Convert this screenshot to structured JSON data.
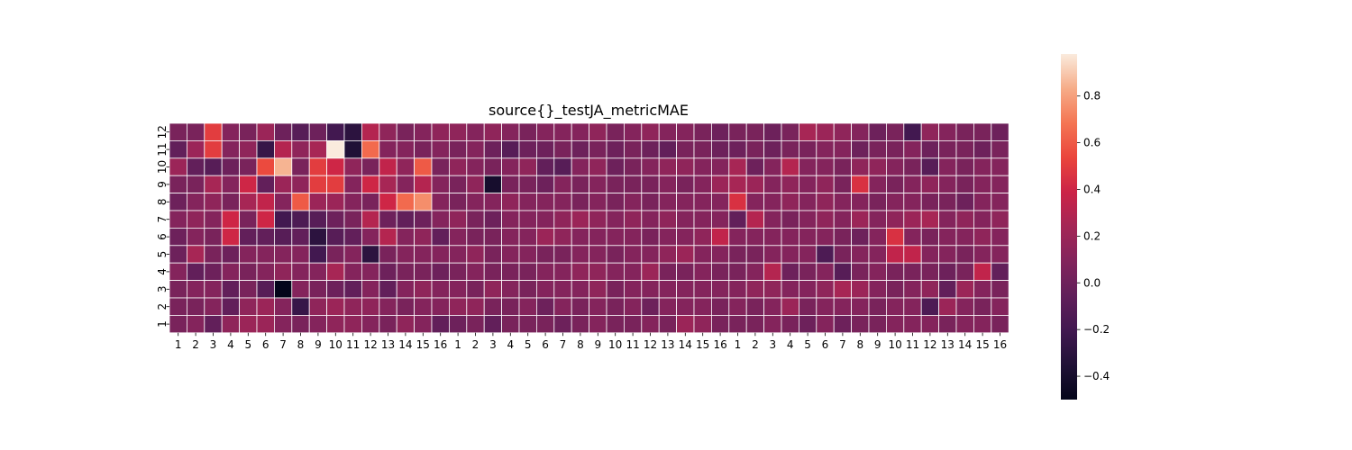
{
  "chart_data": {
    "type": "heatmap",
    "title": "source{}_testJA_metricMAE",
    "xlabel": "",
    "ylabel": "",
    "x_tick_labels": [
      "1",
      "2",
      "3",
      "4",
      "5",
      "6",
      "7",
      "8",
      "9",
      "10",
      "11",
      "12",
      "13",
      "14",
      "15",
      "16",
      "1",
      "2",
      "3",
      "4",
      "5",
      "6",
      "7",
      "8",
      "9",
      "10",
      "11",
      "12",
      "13",
      "14",
      "15",
      "16",
      "1",
      "2",
      "3",
      "4",
      "5",
      "6",
      "7",
      "8",
      "9",
      "10",
      "11",
      "12",
      "13",
      "14",
      "15",
      "16"
    ],
    "y_tick_labels": [
      "12",
      "11",
      "10",
      "9",
      "8",
      "7",
      "6",
      "5",
      "4",
      "3",
      "2",
      "1"
    ],
    "colorbar": {
      "vmin": -0.5,
      "vmax": 0.98,
      "ticks": [
        -0.4,
        -0.2,
        0.0,
        0.2,
        0.4,
        0.6,
        0.8
      ],
      "tick_labels": [
        "−0.4",
        "−0.2",
        "0.0",
        "0.2",
        "0.4",
        "0.6",
        "0.8"
      ],
      "colormap": "rocket"
    },
    "grid": true,
    "values": [
      [
        0.05,
        0.05,
        0.5,
        0.1,
        0.05,
        0.2,
        0.0,
        -0.1,
        0.0,
        -0.2,
        -0.3,
        0.3,
        0.15,
        0.05,
        0.1,
        0.15,
        0.15,
        0.1,
        0.15,
        0.1,
        0.05,
        0.1,
        0.1,
        0.1,
        0.15,
        0.05,
        0.1,
        0.15,
        0.1,
        0.1,
        0.05,
        0.0,
        0.05,
        0.05,
        0.0,
        0.05,
        0.25,
        0.2,
        0.15,
        0.1,
        0.0,
        0.05,
        -0.2,
        0.15,
        0.1,
        0.05,
        0.05,
        0.0
      ],
      [
        -0.05,
        0.2,
        0.5,
        0.1,
        0.15,
        -0.25,
        0.3,
        0.15,
        0.25,
        0.98,
        -0.35,
        0.65,
        0.1,
        0.1,
        0.05,
        0.1,
        0.05,
        0.1,
        0.0,
        -0.1,
        0.0,
        0.0,
        0.05,
        0.0,
        0.05,
        0.0,
        0.05,
        0.0,
        -0.05,
        0.05,
        0.05,
        0.0,
        0.0,
        0.05,
        0.0,
        0.05,
        0.05,
        0.1,
        0.1,
        0.0,
        0.05,
        0.05,
        0.1,
        0.0,
        0.05,
        0.05,
        0.0,
        0.05
      ],
      [
        0.2,
        -0.05,
        -0.1,
        0.0,
        0.05,
        0.55,
        0.85,
        0.05,
        0.5,
        0.4,
        0.15,
        0.05,
        0.35,
        0.15,
        0.6,
        0.05,
        0.15,
        0.1,
        0.05,
        0.1,
        0.15,
        -0.05,
        -0.1,
        0.1,
        0.15,
        0.0,
        0.05,
        0.1,
        0.15,
        0.15,
        0.1,
        0.1,
        0.25,
        0.0,
        0.1,
        0.3,
        0.1,
        0.1,
        0.05,
        0.15,
        0.15,
        0.1,
        0.05,
        -0.1,
        0.1,
        0.05,
        0.1,
        0.1
      ],
      [
        0.05,
        0.05,
        0.25,
        0.1,
        0.4,
        -0.05,
        0.2,
        0.15,
        0.5,
        0.5,
        0.1,
        0.4,
        0.25,
        0.1,
        0.3,
        0.1,
        0.05,
        0.15,
        -0.4,
        0.05,
        0.05,
        0.0,
        0.1,
        0.05,
        0.1,
        0.05,
        0.05,
        0.05,
        0.1,
        0.05,
        0.1,
        0.2,
        0.25,
        0.2,
        0.1,
        0.15,
        0.1,
        0.15,
        0.05,
        0.45,
        0.1,
        0.05,
        0.1,
        0.15,
        0.1,
        0.05,
        0.1,
        0.1
      ],
      [
        0.0,
        0.1,
        0.15,
        0.05,
        0.25,
        0.35,
        0.1,
        0.6,
        0.2,
        0.2,
        0.1,
        0.05,
        0.4,
        0.65,
        0.75,
        0.1,
        0.05,
        0.1,
        0.1,
        0.15,
        0.1,
        0.1,
        0.1,
        0.05,
        0.1,
        0.05,
        0.1,
        0.05,
        0.1,
        0.1,
        0.1,
        0.1,
        0.45,
        0.1,
        0.1,
        0.15,
        0.1,
        0.15,
        0.1,
        0.1,
        0.05,
        0.1,
        0.1,
        0.05,
        0.05,
        0.0,
        0.1,
        0.1
      ],
      [
        0.1,
        0.15,
        0.1,
        0.4,
        0.05,
        0.4,
        -0.2,
        -0.15,
        -0.1,
        0.0,
        0.05,
        0.3,
        0.0,
        -0.05,
        0.0,
        0.1,
        0.15,
        0.05,
        0.0,
        0.1,
        0.1,
        0.1,
        0.15,
        0.2,
        0.15,
        0.1,
        0.15,
        0.1,
        0.15,
        0.1,
        0.1,
        0.1,
        -0.05,
        0.3,
        0.1,
        0.05,
        0.1,
        0.15,
        0.1,
        0.2,
        0.1,
        0.15,
        0.2,
        0.25,
        0.1,
        0.15,
        0.1,
        0.15
      ],
      [
        0.0,
        0.1,
        0.05,
        0.4,
        -0.05,
        -0.05,
        -0.1,
        -0.05,
        -0.3,
        -0.1,
        -0.05,
        0.1,
        0.3,
        0.1,
        0.15,
        -0.05,
        0.1,
        0.05,
        0.05,
        0.1,
        0.1,
        0.2,
        0.15,
        0.1,
        0.1,
        0.1,
        0.1,
        0.05,
        0.1,
        0.1,
        0.15,
        0.35,
        0.1,
        0.1,
        0.1,
        0.1,
        0.1,
        0.1,
        0.05,
        0.0,
        0.1,
        0.45,
        0.1,
        0.05,
        0.1,
        0.1,
        0.15,
        0.1
      ],
      [
        0.0,
        0.25,
        0.05,
        0.0,
        0.1,
        0.1,
        0.1,
        0.1,
        -0.2,
        0.05,
        0.1,
        -0.3,
        0.05,
        0.1,
        0.1,
        0.1,
        0.1,
        0.15,
        0.05,
        0.1,
        0.1,
        0.05,
        0.05,
        0.1,
        0.1,
        0.05,
        0.1,
        0.1,
        0.15,
        0.2,
        0.1,
        0.1,
        0.05,
        0.05,
        0.1,
        0.1,
        0.1,
        -0.15,
        0.05,
        0.1,
        0.1,
        0.35,
        0.35,
        0.1,
        0.1,
        0.05,
        0.1,
        0.1
      ],
      [
        0.1,
        -0.05,
        0.0,
        0.1,
        0.05,
        0.1,
        0.15,
        0.1,
        0.1,
        0.25,
        0.1,
        0.1,
        0.0,
        0.05,
        0.05,
        0.0,
        0.05,
        0.1,
        0.05,
        0.05,
        0.05,
        0.1,
        0.1,
        0.15,
        0.15,
        0.1,
        0.1,
        0.2,
        0.05,
        0.05,
        0.1,
        0.05,
        0.05,
        0.1,
        0.3,
        0.0,
        0.05,
        0.1,
        -0.1,
        0.05,
        0.1,
        0.05,
        0.05,
        0.05,
        0.0,
        0.05,
        0.35,
        -0.05
      ],
      [
        0.05,
        0.1,
        0.1,
        -0.05,
        0.05,
        -0.1,
        -0.5,
        0.1,
        0.05,
        0.0,
        -0.05,
        0.1,
        -0.05,
        0.1,
        0.15,
        0.1,
        0.1,
        0.05,
        0.15,
        0.1,
        0.05,
        0.1,
        0.1,
        0.1,
        0.15,
        0.05,
        0.1,
        0.1,
        0.1,
        0.1,
        0.1,
        0.1,
        0.1,
        0.15,
        0.15,
        0.1,
        0.1,
        0.15,
        0.25,
        0.2,
        0.1,
        0.05,
        0.1,
        0.15,
        -0.05,
        0.2,
        0.1,
        0.05
      ],
      [
        0.05,
        0.05,
        0.1,
        -0.05,
        0.15,
        0.2,
        0.1,
        -0.25,
        0.15,
        0.2,
        0.15,
        0.15,
        0.1,
        0.05,
        0.1,
        0.1,
        0.15,
        0.15,
        0.05,
        0.05,
        0.1,
        0.0,
        0.1,
        0.05,
        0.1,
        0.05,
        0.1,
        0.0,
        0.1,
        0.1,
        0.1,
        0.05,
        0.1,
        0.05,
        0.1,
        0.2,
        0.05,
        0.1,
        0.1,
        0.1,
        0.05,
        0.1,
        0.1,
        -0.15,
        0.2,
        0.1,
        0.05,
        0.1
      ],
      [
        0.05,
        0.1,
        -0.05,
        0.15,
        0.2,
        0.2,
        0.1,
        0.05,
        0.1,
        0.15,
        0.15,
        0.1,
        0.05,
        0.15,
        0.1,
        -0.05,
        0.0,
        0.05,
        -0.05,
        0.05,
        0.05,
        0.05,
        0.0,
        0.05,
        0.1,
        0.05,
        0.05,
        0.1,
        0.05,
        0.2,
        0.15,
        0.05,
        0.05,
        0.05,
        0.1,
        0.05,
        0.0,
        0.1,
        0.0,
        0.05,
        0.05,
        0.1,
        0.1,
        0.1,
        0.05,
        0.1,
        0.1,
        0.05
      ]
    ]
  }
}
